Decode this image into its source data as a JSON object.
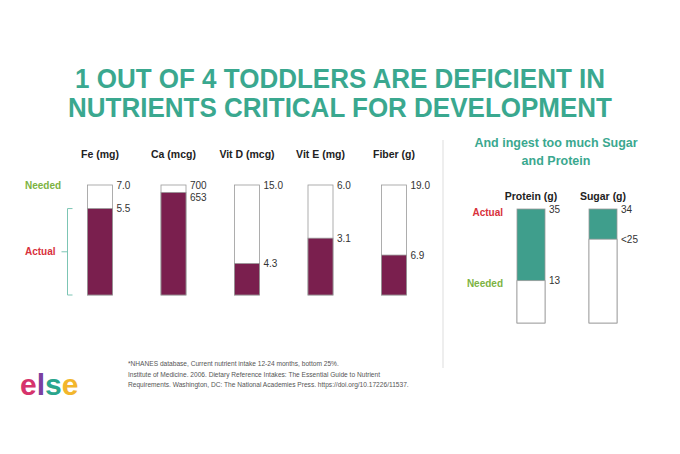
{
  "title": [
    "1 OUT OF 4 TODDLERS ARE DEFICIENT IN",
    "NUTRIENTS CRITICAL FOR DEVELOPMENT"
  ],
  "chart_data": [
    {
      "type": "bar",
      "categories": [
        "Fe (mg)",
        "Ca (mcg)",
        "Vit D (mcg)",
        "Vit E (mg)",
        "Fiber (g)"
      ],
      "series": [
        {
          "name": "Needed",
          "color": "#ffffff",
          "values": [
            7,
            700,
            15,
            6,
            19
          ],
          "value_labels": [
            "7.0",
            "700",
            "15.0",
            "6.0",
            "19.0"
          ]
        },
        {
          "name": "Actual",
          "color": "#7a1f4e",
          "values": [
            5.5,
            653,
            4.3,
            3.1,
            6.9
          ]
        }
      ],
      "data_labels": true,
      "tick_labels": "x"
    },
    {
      "type": "bar",
      "title": [
        "And ingest too much Sugar",
        "and Protein"
      ],
      "categories": [
        "Protein (g)",
        "Sugar (g)"
      ],
      "series": [
        {
          "name": "Needed",
          "color": "#ffffff",
          "values": [
            13,
            25
          ],
          "value_labels": [
            "13",
            "<25"
          ]
        },
        {
          "name": "Actual",
          "color": "#3f9e8c",
          "values": [
            35,
            34
          ]
        }
      ],
      "data_labels": true,
      "tick_labels": "x"
    }
  ],
  "notes": [
    "*NHANES database, Current nutrient intake 12-24 months, bottom 25%.",
    "Institute of Medicine. 2006. Dietary Reference Intakes: The Essential Guide to Nutrient",
    "Requirements. Washington, DC: The National Academies Press. https://doi.org/10.17226/11537."
  ],
  "logo": "else"
}
